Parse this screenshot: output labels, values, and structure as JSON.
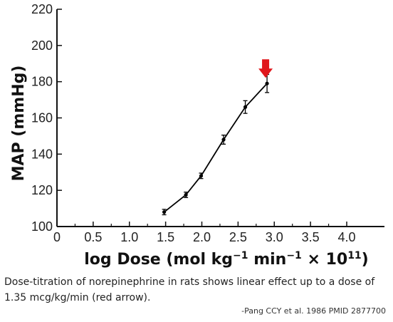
{
  "chart_data": {
    "type": "line",
    "xlabel": "log Dose (mol kg",
    "xlabel_sup1": "−1",
    "xlabel_mid": " min",
    "xlabel_sup2": "−1",
    "xlabel_end": " × 10",
    "xlabel_sup3": "11",
    "xlabel_close": ")",
    "ylabel": "MAP (mmHg)",
    "xlim": [
      0,
      4.0
    ],
    "ylim": [
      100,
      220
    ],
    "xticks": [
      0,
      0.5,
      1.0,
      1.5,
      2.0,
      2.5,
      3.0,
      3.5,
      4.0
    ],
    "xtick_labels": [
      "0",
      "0.5",
      "1.0",
      "1.5",
      "2.0",
      "2.5",
      "3.0",
      "3.5",
      "4.0"
    ],
    "yticks": [
      100,
      120,
      140,
      160,
      180,
      200,
      220
    ],
    "ytick_labels": [
      "100",
      "120",
      "140",
      "160",
      "180",
      "200",
      "220"
    ],
    "series": [
      {
        "x": [
          1.48,
          1.78,
          1.99,
          2.3,
          2.6,
          2.9
        ],
        "y": [
          108,
          117.5,
          128,
          148,
          166,
          179
        ],
        "err": [
          1.5,
          1.5,
          1.5,
          2.5,
          3.5,
          5
        ],
        "color": "#000000"
      }
    ],
    "annotation": {
      "type": "arrow",
      "x": 2.9,
      "y": 179,
      "color": "#e0161b"
    },
    "grid": false
  },
  "caption": {
    "text": "Dose-titration of norepinephrine in rats shows linear effect up to a dose of 1.35 mcg/kg/min (red arrow).",
    "citation": "-Pang CCY et al.  1986  PMID 2877700"
  }
}
